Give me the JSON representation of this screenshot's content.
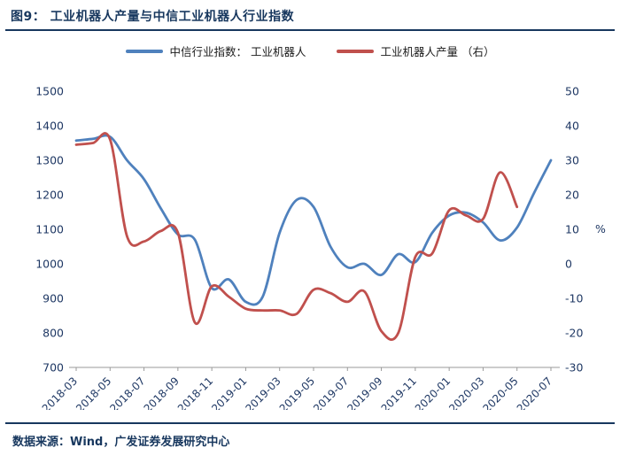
{
  "title": "图9： 工业机器人产量与中信工业机器人行业指数",
  "legend": [
    {
      "label": "中信行业指数： 工业机器人",
      "color": "#4F81BD"
    },
    {
      "label": "工业机器人产量 （右）",
      "color": "#C0504D"
    }
  ],
  "source": "数据来源：Wind，广发证券发展研究中心",
  "colors": {
    "accent_navy": "#17375E",
    "index_line": "#4F81BD",
    "production_line": "#C0504D",
    "axis_text": "#1F3864"
  },
  "chart_data": {
    "type": "line",
    "x": [
      "2018-03",
      "2018-04",
      "2018-05",
      "2018-06",
      "2018-07",
      "2018-08",
      "2018-09",
      "2018-10",
      "2018-11",
      "2018-12",
      "2019-01",
      "2019-02",
      "2019-03",
      "2019-04",
      "2019-05",
      "2019-06",
      "2019-07",
      "2019-08",
      "2019-09",
      "2019-10",
      "2019-11",
      "2019-12",
      "2020-01",
      "2020-02",
      "2020-03",
      "2020-04",
      "2020-05",
      "2020-06",
      "2020-07"
    ],
    "x_tick_step": 2,
    "left_axis": {
      "min": 700,
      "max": 1500,
      "ticks": [
        700,
        800,
        900,
        1000,
        1100,
        1200,
        1300,
        1400,
        1500
      ]
    },
    "right_axis": {
      "min": -30,
      "max": 50,
      "ticks": [
        -30,
        -20,
        -10,
        0,
        10,
        20,
        30,
        40,
        50
      ],
      "unit": "%"
    },
    "grid": false,
    "legend_position": "top",
    "series": [
      {
        "name": "中信行业指数：工业机器人",
        "axis": "left",
        "color": "#4F81BD",
        "values": [
          1357,
          1362,
          1368,
          1300,
          1245,
          1160,
          1085,
          1070,
          930,
          955,
          890,
          905,
          1090,
          1185,
          1165,
          1050,
          990,
          1000,
          968,
          1028,
          1005,
          1090,
          1140,
          1148,
          1120,
          1068,
          1105,
          1205,
          1300
        ]
      },
      {
        "name": "工业机器人产量 （右）",
        "axis": "right",
        "color": "#C0504D",
        "values": [
          34.5,
          35,
          36,
          8,
          6.5,
          9.5,
          9,
          -17,
          -6.5,
          -9.5,
          -13,
          -13.5,
          -13.5,
          -14.5,
          -7.5,
          -8.5,
          -11,
          -8,
          -19.5,
          -20,
          2,
          3,
          15.5,
          14,
          13,
          26.5,
          16.5,
          null,
          null
        ]
      }
    ]
  }
}
